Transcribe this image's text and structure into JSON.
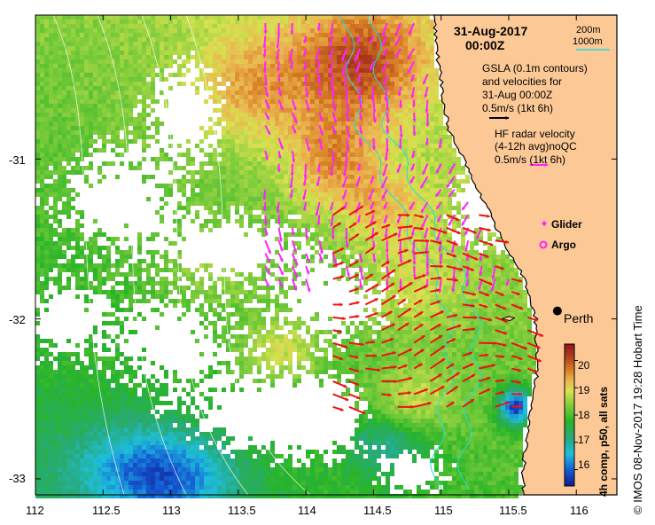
{
  "title": {
    "date": "31-Aug-2017",
    "time": "00:00Z"
  },
  "isobath_legend": {
    "shallow": "200m",
    "deep": "1000m"
  },
  "gsla_legend": {
    "line1": "GSLA (0.1m contours)",
    "line2": "and velocities for",
    "line3": "31-Aug 00:00Z",
    "scale": "0.5m/s (1kt 6h)"
  },
  "radar_legend": {
    "line1": "HF radar velocity",
    "line2": "(4-12h avg)noQC",
    "scale": "0.5m/s (1kt 6h)"
  },
  "markers": {
    "glider": "Glider",
    "argo": "Argo"
  },
  "city": {
    "name": "Perth",
    "lon": 115.86,
    "lat": -31.95
  },
  "axes": {
    "x_ticks": [
      "112",
      "112.5",
      "113",
      "113.5",
      "114",
      "114.5",
      "115",
      "115.5",
      "116"
    ],
    "y_ticks": [
      "-31",
      "-32",
      "-33"
    ],
    "lon_range": [
      112,
      116.3
    ],
    "lat_range": [
      -30.1,
      -33.1
    ]
  },
  "colorbar": {
    "label": "4h comp, p50, all sats",
    "ticks": [
      "16",
      "17",
      "18",
      "19",
      "20"
    ],
    "range": [
      15.4,
      20.6
    ]
  },
  "credit": "© IMOS 08-Nov-2017 19:28 Hobart Time",
  "colors": {
    "land": "#fcc996",
    "gsla_arrow": "#000000",
    "radar_arrow": "#ff22ff",
    "glider_arrow": "#ee1111",
    "isobath": "#22dddd"
  }
}
